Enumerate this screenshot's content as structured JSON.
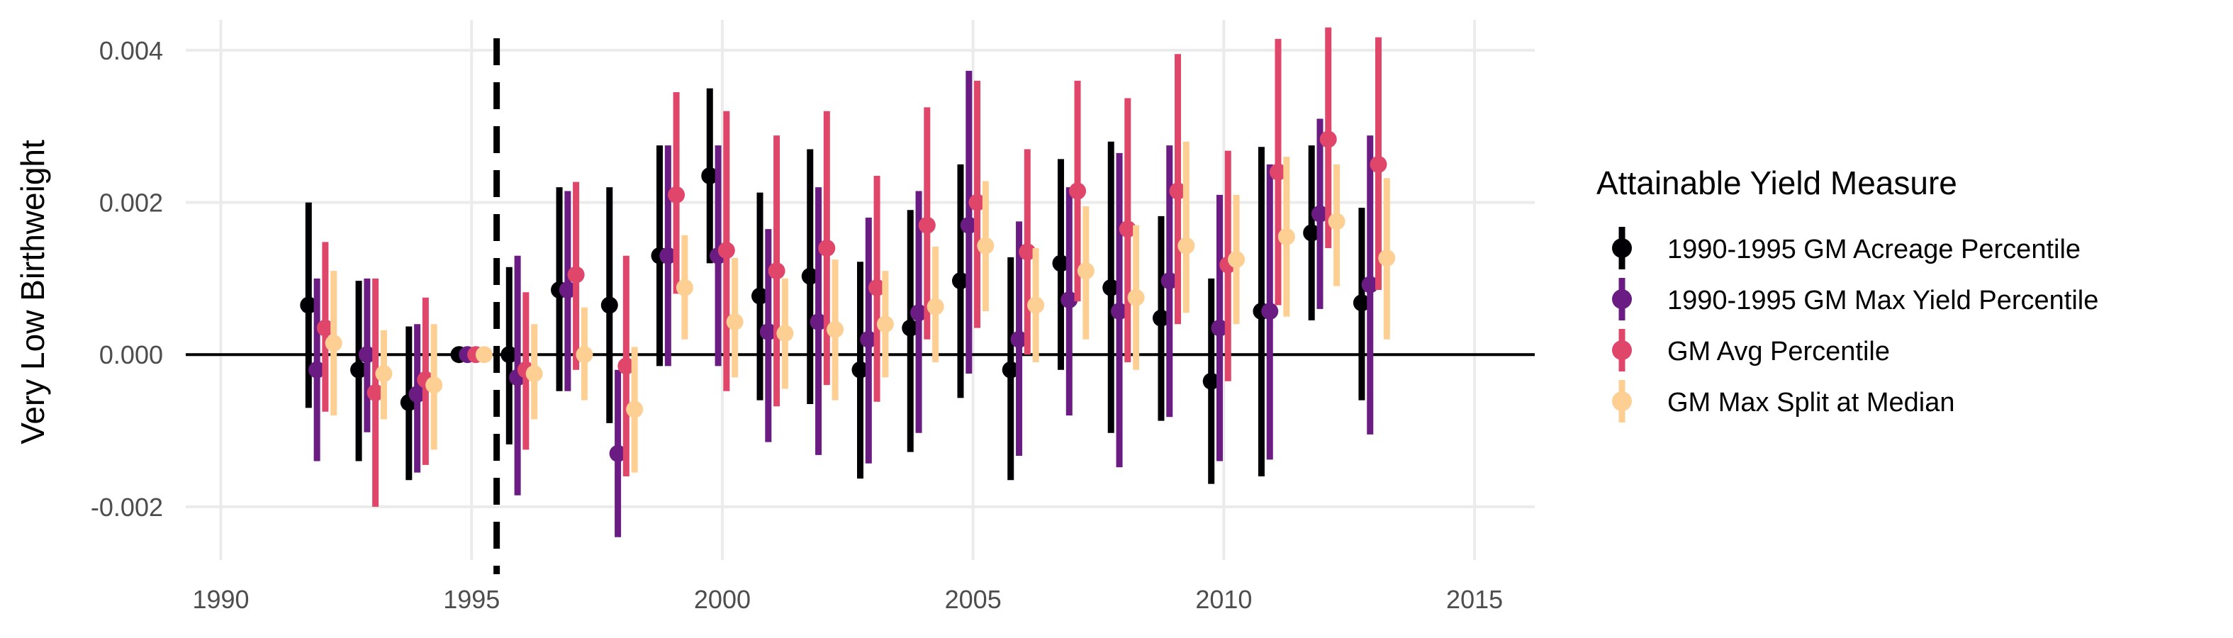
{
  "chart_data": {
    "type": "scatter",
    "ylabel": "Very Low Birthweight",
    "xlabel": "",
    "xlim": [
      1989.3,
      1991.2
    ],
    "xlim_note": "",
    "x_ticks": [
      1990,
      1995,
      2000,
      2005,
      2010,
      2015
    ],
    "x_tick_labels": [
      "1990",
      "1995",
      "2000",
      "2005",
      "2010",
      "2015"
    ],
    "ylim": [
      -0.0027,
      0.0044
    ],
    "y_ticks": [
      -0.002,
      0.0,
      0.002,
      0.004
    ],
    "y_tick_labels": [
      "-0.002",
      "0.000",
      "0.002",
      "0.004"
    ],
    "reference_hline": 0.0,
    "reference_vline": 1995.5,
    "grid": true,
    "legend": {
      "title": "Attainable Yield Measure",
      "position": "right"
    },
    "series": [
      {
        "name": "1990-1995 GM Acreage Percentile",
        "color": "#000004",
        "points": [
          {
            "x": 1992,
            "y": 0.00065,
            "lo": -0.0007,
            "hi": 0.002
          },
          {
            "x": 1993,
            "y": -0.0002,
            "lo": -0.0014,
            "hi": 0.00097
          },
          {
            "x": 1994,
            "y": -0.00063,
            "lo": -0.00165,
            "hi": 0.00037
          },
          {
            "x": 1995,
            "y": 0.0,
            "lo": 0.0,
            "hi": 0.0
          },
          {
            "x": 1996,
            "y": 0.0,
            "lo": -0.00118,
            "hi": 0.00115
          },
          {
            "x": 1997,
            "y": 0.00085,
            "lo": -0.00048,
            "hi": 0.0022
          },
          {
            "x": 1998,
            "y": 0.00065,
            "lo": -0.0009,
            "hi": 0.0022
          },
          {
            "x": 1999,
            "y": 0.0013,
            "lo": -0.00015,
            "hi": 0.00275
          },
          {
            "x": 2000,
            "y": 0.00235,
            "lo": 0.0012,
            "hi": 0.0035
          },
          {
            "x": 2001,
            "y": 0.00077,
            "lo": -0.0006,
            "hi": 0.00213
          },
          {
            "x": 2002,
            "y": 0.00103,
            "lo": -0.00065,
            "hi": 0.0027
          },
          {
            "x": 2003,
            "y": -0.0002,
            "lo": -0.00163,
            "hi": 0.00122
          },
          {
            "x": 2004,
            "y": 0.00035,
            "lo": -0.00128,
            "hi": 0.0019
          },
          {
            "x": 2005,
            "y": 0.00097,
            "lo": -0.00057,
            "hi": 0.0025
          },
          {
            "x": 2006,
            "y": -0.0002,
            "lo": -0.00165,
            "hi": 0.00128
          },
          {
            "x": 2007,
            "y": 0.0012,
            "lo": -0.0002,
            "hi": 0.00257
          },
          {
            "x": 2008,
            "y": 0.00088,
            "lo": -0.00103,
            "hi": 0.0028
          },
          {
            "x": 2009,
            "y": 0.00048,
            "lo": -0.00087,
            "hi": 0.00182
          },
          {
            "x": 2010,
            "y": -0.00035,
            "lo": -0.0017,
            "hi": 0.001
          },
          {
            "x": 2011,
            "y": 0.00057,
            "lo": -0.0016,
            "hi": 0.00273
          },
          {
            "x": 2012,
            "y": 0.0016,
            "lo": 0.00045,
            "hi": 0.00275
          },
          {
            "x": 2013,
            "y": 0.00068,
            "lo": -0.0006,
            "hi": 0.00193
          }
        ]
      },
      {
        "name": "1990-1995 GM Max Yield Percentile",
        "color": "#6a1c83",
        "points": [
          {
            "x": 1992,
            "y": -0.0002,
            "lo": -0.0014,
            "hi": 0.001
          },
          {
            "x": 1993,
            "y": 0.0,
            "lo": -0.00102,
            "hi": 0.001
          },
          {
            "x": 1994,
            "y": -0.00052,
            "lo": -0.00155,
            "hi": 0.0004
          },
          {
            "x": 1995,
            "y": 0.0,
            "lo": 0.0,
            "hi": 0.0
          },
          {
            "x": 1996,
            "y": -0.0003,
            "lo": -0.00185,
            "hi": 0.0013
          },
          {
            "x": 1997,
            "y": 0.00085,
            "lo": -0.00048,
            "hi": 0.00215
          },
          {
            "x": 1998,
            "y": -0.0013,
            "lo": -0.0024,
            "hi": -0.0002
          },
          {
            "x": 1999,
            "y": 0.0013,
            "lo": -0.00015,
            "hi": 0.00275
          },
          {
            "x": 2000,
            "y": 0.0013,
            "lo": -0.00015,
            "hi": 0.00275
          },
          {
            "x": 2001,
            "y": 0.0003,
            "lo": -0.00115,
            "hi": 0.00165
          },
          {
            "x": 2002,
            "y": 0.00043,
            "lo": -0.00132,
            "hi": 0.0022
          },
          {
            "x": 2003,
            "y": 0.0002,
            "lo": -0.00143,
            "hi": 0.0018
          },
          {
            "x": 2004,
            "y": 0.00055,
            "lo": -0.00103,
            "hi": 0.00215
          },
          {
            "x": 2005,
            "y": 0.0017,
            "lo": -0.00025,
            "hi": 0.00373
          },
          {
            "x": 2006,
            "y": 0.0002,
            "lo": -0.00133,
            "hi": 0.00175
          },
          {
            "x": 2007,
            "y": 0.00072,
            "lo": -0.0008,
            "hi": 0.0022
          },
          {
            "x": 2008,
            "y": 0.00057,
            "lo": -0.00148,
            "hi": 0.00265
          },
          {
            "x": 2009,
            "y": 0.00097,
            "lo": -0.00082,
            "hi": 0.00275
          },
          {
            "x": 2010,
            "y": 0.00035,
            "lo": -0.0014,
            "hi": 0.0021
          },
          {
            "x": 2011,
            "y": 0.00057,
            "lo": -0.00138,
            "hi": 0.0025
          },
          {
            "x": 2012,
            "y": 0.00185,
            "lo": 0.0006,
            "hi": 0.0031
          },
          {
            "x": 2013,
            "y": 0.00092,
            "lo": -0.00105,
            "hi": 0.00288
          }
        ]
      },
      {
        "name": "GM Avg Percentile",
        "color": "#e0466a",
        "points": [
          {
            "x": 1992,
            "y": 0.00035,
            "lo": -0.00075,
            "hi": 0.00148
          },
          {
            "x": 1993,
            "y": -0.0005,
            "lo": -0.002,
            "hi": 0.001
          },
          {
            "x": 1994,
            "y": -0.00033,
            "lo": -0.00145,
            "hi": 0.00075
          },
          {
            "x": 1995,
            "y": 0.0,
            "lo": 0.0,
            "hi": 0.0
          },
          {
            "x": 1996,
            "y": -0.0002,
            "lo": -0.00125,
            "hi": 0.00082
          },
          {
            "x": 1997,
            "y": 0.00105,
            "lo": -0.0002,
            "hi": 0.00227
          },
          {
            "x": 1998,
            "y": -0.00015,
            "lo": -0.0016,
            "hi": 0.0013
          },
          {
            "x": 1999,
            "y": 0.0021,
            "lo": 0.0008,
            "hi": 0.00345
          },
          {
            "x": 2000,
            "y": 0.00137,
            "lo": -0.00048,
            "hi": 0.0032
          },
          {
            "x": 2001,
            "y": 0.0011,
            "lo": -0.00068,
            "hi": 0.00288
          },
          {
            "x": 2002,
            "y": 0.0014,
            "lo": -0.0004,
            "hi": 0.0032
          },
          {
            "x": 2003,
            "y": 0.00088,
            "lo": -0.00062,
            "hi": 0.00235
          },
          {
            "x": 2004,
            "y": 0.0017,
            "lo": 0.0002,
            "hi": 0.00325
          },
          {
            "x": 2005,
            "y": 0.002,
            "lo": 0.00035,
            "hi": 0.0036
          },
          {
            "x": 2006,
            "y": 0.00135,
            "lo": 0.0,
            "hi": 0.0027
          },
          {
            "x": 2007,
            "y": 0.00215,
            "lo": 0.0007,
            "hi": 0.0036
          },
          {
            "x": 2008,
            "y": 0.00165,
            "lo": -0.0001,
            "hi": 0.00337
          },
          {
            "x": 2009,
            "y": 0.00215,
            "lo": 0.0004,
            "hi": 0.00395
          },
          {
            "x": 2010,
            "y": 0.00118,
            "lo": -0.00035,
            "hi": 0.00268
          },
          {
            "x": 2011,
            "y": 0.0024,
            "lo": 0.00065,
            "hi": 0.00415
          },
          {
            "x": 2012,
            "y": 0.00283,
            "lo": 0.0014,
            "hi": 0.0043
          },
          {
            "x": 2013,
            "y": 0.0025,
            "lo": 0.00085,
            "hi": 0.00417
          }
        ]
      },
      {
        "name": "GM Max Split at Median",
        "color": "#fecf92",
        "points": [
          {
            "x": 1992,
            "y": 0.00015,
            "lo": -0.0008,
            "hi": 0.0011
          },
          {
            "x": 1993,
            "y": -0.00025,
            "lo": -0.00085,
            "hi": 0.00032
          },
          {
            "x": 1994,
            "y": -0.0004,
            "lo": -0.00125,
            "hi": 0.0004
          },
          {
            "x": 1995,
            "y": 0.0,
            "lo": 0.0,
            "hi": 0.0
          },
          {
            "x": 1996,
            "y": -0.00025,
            "lo": -0.00085,
            "hi": 0.0004
          },
          {
            "x": 1997,
            "y": 0.0,
            "lo": -0.0006,
            "hi": 0.00062
          },
          {
            "x": 1998,
            "y": -0.00072,
            "lo": -0.00155,
            "hi": 0.0001
          },
          {
            "x": 1999,
            "y": 0.00088,
            "lo": 0.0002,
            "hi": 0.00157
          },
          {
            "x": 2000,
            "y": 0.00043,
            "lo": -0.0003,
            "hi": 0.00127
          },
          {
            "x": 2001,
            "y": 0.00028,
            "lo": -0.00045,
            "hi": 0.001
          },
          {
            "x": 2002,
            "y": 0.00033,
            "lo": -0.0006,
            "hi": 0.00125
          },
          {
            "x": 2003,
            "y": 0.0004,
            "lo": -0.0003,
            "hi": 0.0011
          },
          {
            "x": 2004,
            "y": 0.00063,
            "lo": -0.0001,
            "hi": 0.00142
          },
          {
            "x": 2005,
            "y": 0.00143,
            "lo": 0.00057,
            "hi": 0.00228
          },
          {
            "x": 2006,
            "y": 0.00065,
            "lo": -0.0001,
            "hi": 0.0014
          },
          {
            "x": 2007,
            "y": 0.0011,
            "lo": 0.0002,
            "hi": 0.00195
          },
          {
            "x": 2008,
            "y": 0.00075,
            "lo": -0.0002,
            "hi": 0.0017
          },
          {
            "x": 2009,
            "y": 0.00143,
            "lo": 0.00055,
            "hi": 0.0028
          },
          {
            "x": 2010,
            "y": 0.00125,
            "lo": 0.0004,
            "hi": 0.0021
          },
          {
            "x": 2011,
            "y": 0.00155,
            "lo": 0.0005,
            "hi": 0.0026
          },
          {
            "x": 2012,
            "y": 0.00175,
            "lo": 0.0009,
            "hi": 0.0025
          },
          {
            "x": 2013,
            "y": 0.00127,
            "lo": 0.0002,
            "hi": 0.00232
          }
        ]
      }
    ]
  }
}
